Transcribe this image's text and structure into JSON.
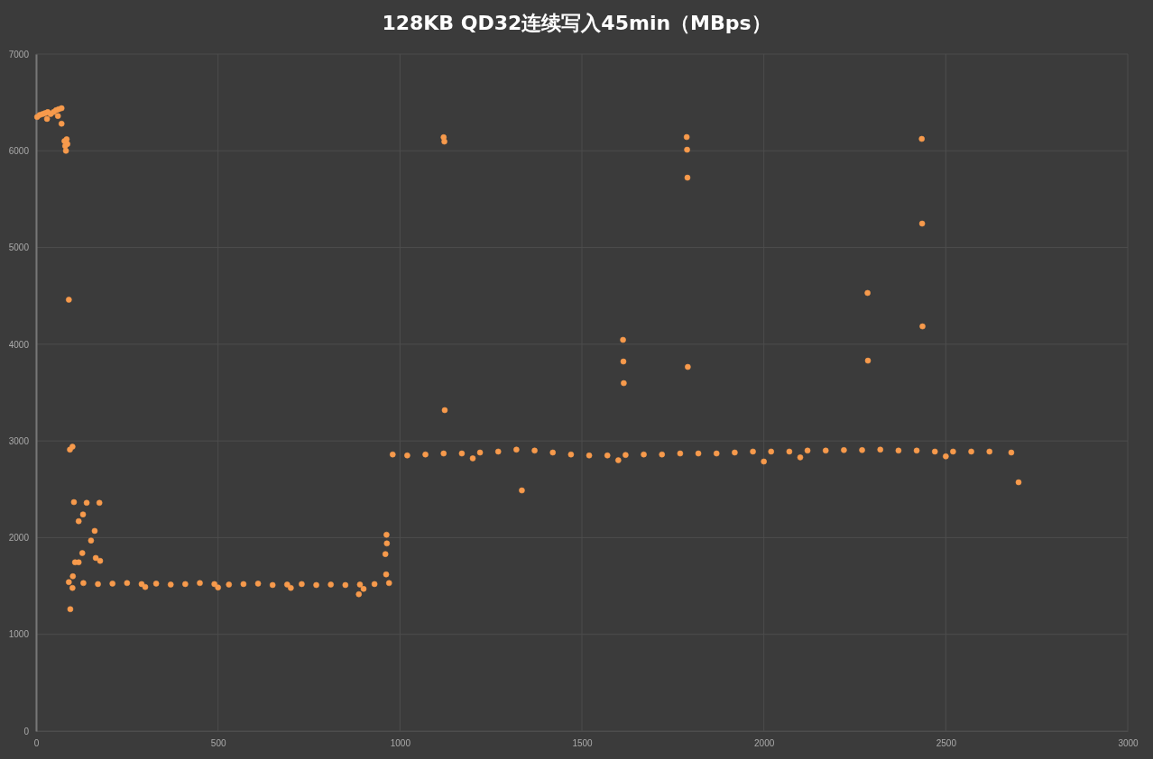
{
  "chart_data": {
    "type": "scatter",
    "title": "128KB QD32连续写入45min（MBps）",
    "xlim": [
      0,
      3000
    ],
    "xticks": [
      0,
      500,
      1000,
      1500,
      2000,
      2500,
      3000
    ],
    "ylim": [
      0,
      7000
    ],
    "yticks": [
      0,
      1000,
      2000,
      3000,
      4000,
      5000,
      6000,
      7000
    ],
    "grid": true,
    "marker": "circle",
    "x": [
      3,
      10,
      18,
      25,
      32,
      40,
      48,
      55,
      62,
      70,
      30,
      60,
      70,
      78,
      80,
      82,
      84,
      86,
      90,
      93,
      100,
      104,
      139,
      174,
      129,
      117,
      161,
      151,
      127,
      164,
      176,
      107,
      117,
      94,
      101,
      963,
      964,
      960,
      962,
      887,
      90,
      130,
      170,
      210,
      250,
      290,
      330,
      370,
      410,
      450,
      490,
      530,
      570,
      610,
      650,
      690,
      730,
      770,
      810,
      850,
      890,
      930,
      970,
      100,
      300,
      500,
      700,
      900,
      980,
      1020,
      1070,
      1120,
      1170,
      1220,
      1270,
      1320,
      1370,
      1420,
      1470,
      1520,
      1570,
      1620,
      1670,
      1720,
      1770,
      1820,
      1870,
      1920,
      1970,
      2020,
      2070,
      2120,
      2170,
      2220,
      2270,
      2320,
      2370,
      2420,
      2470,
      2520,
      2570,
      2620,
      2680,
      1200,
      1600,
      2100,
      2500,
      1120,
      1122,
      1123,
      1335,
      1613,
      1614,
      1615,
      1788,
      1789,
      1790,
      1791,
      2285,
      2286,
      2434,
      2435,
      2436,
      2700,
      2000
    ],
    "series": [
      {
        "color": "#f79a4c",
        "values": [
          6350,
          6370,
          6380,
          6390,
          6400,
          6380,
          6400,
          6420,
          6430,
          6440,
          6330,
          6360,
          6280,
          6100,
          6050,
          6000,
          6120,
          6070,
          4460,
          2910,
          2940,
          2367,
          2360,
          2360,
          2240,
          2170,
          2070,
          1970,
          1840,
          1790,
          1760,
          1745,
          1745,
          1260,
          1600,
          2030,
          1940,
          1830,
          1620,
          1415,
          1540,
          1530,
          1520,
          1525,
          1530,
          1520,
          1525,
          1515,
          1520,
          1530,
          1520,
          1515,
          1520,
          1525,
          1510,
          1515,
          1520,
          1510,
          1515,
          1510,
          1515,
          1520,
          1530,
          1480,
          1490,
          1485,
          1480,
          1470,
          2860,
          2850,
          2860,
          2870,
          2870,
          2880,
          2890,
          2910,
          2900,
          2880,
          2860,
          2850,
          2850,
          2855,
          2860,
          2860,
          2870,
          2870,
          2870,
          2880,
          2890,
          2890,
          2890,
          2900,
          2900,
          2905,
          2905,
          2910,
          2900,
          2900,
          2890,
          2890,
          2890,
          2890,
          2880,
          2820,
          2800,
          2830,
          2840,
          6140,
          6095,
          3318,
          2488,
          4045,
          3821,
          3597,
          6142,
          6011,
          5722,
          3765,
          4530,
          3830,
          6123,
          5247,
          4184,
          2572,
          2787
        ]
      }
    ]
  }
}
